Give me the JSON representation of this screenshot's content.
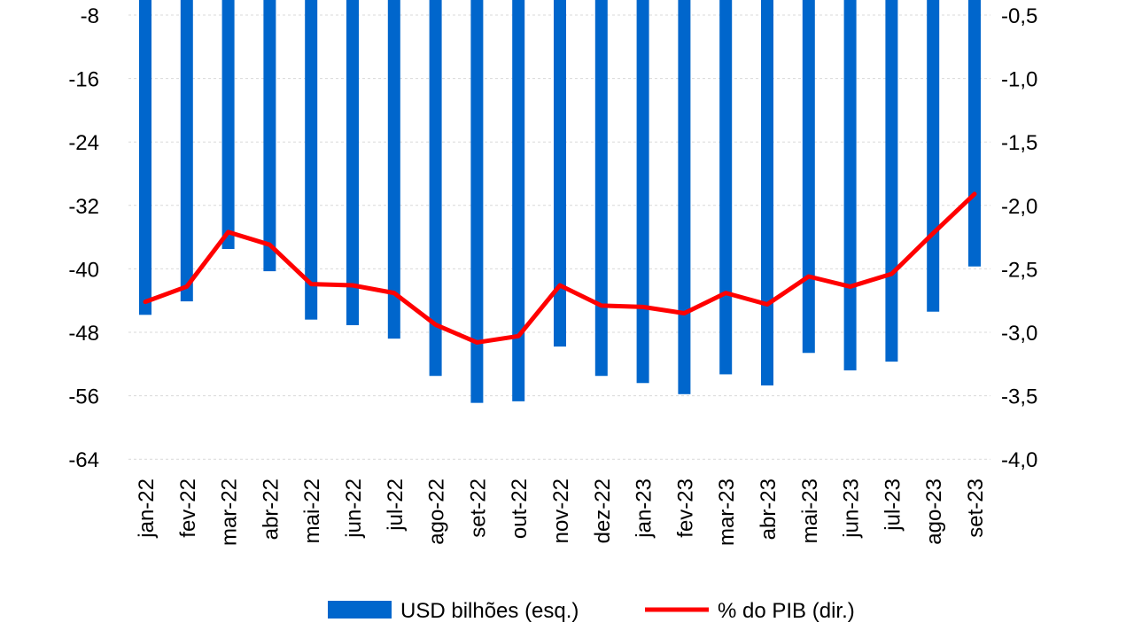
{
  "chart_data": {
    "type": "bar+line",
    "title": "",
    "categories": [
      "jan-22",
      "fev-22",
      "mar-22",
      "abr-22",
      "mai-22",
      "jun-22",
      "jul-22",
      "ago-22",
      "set-22",
      "out-22",
      "nov-22",
      "dez-22",
      "jan-23",
      "fev-23",
      "mar-23",
      "abr-23",
      "mai-23",
      "jun-23",
      "jul-23",
      "ago-23",
      "set-23"
    ],
    "series": [
      {
        "name": "USD bilhões (esq.)",
        "type": "bar",
        "axis": "left",
        "color": "#0066CC",
        "values": [
          -45.8,
          -44.1,
          -37.5,
          -40.3,
          -46.4,
          -47.1,
          -48.8,
          -53.5,
          -56.9,
          -56.7,
          -49.8,
          -53.5,
          -54.4,
          -55.8,
          -53.3,
          -54.7,
          -50.6,
          -52.8,
          -51.7,
          -45.4,
          -39.7
        ]
      },
      {
        "name": "% do PIB (dir.)",
        "type": "line",
        "axis": "right",
        "color": "#FF0000",
        "values": [
          -2.76,
          -2.64,
          -2.21,
          -2.31,
          -2.62,
          -2.63,
          -2.69,
          -2.94,
          -3.08,
          -3.03,
          -2.63,
          -2.79,
          -2.8,
          -2.85,
          -2.69,
          -2.78,
          -2.56,
          -2.64,
          -2.54,
          -2.22,
          -1.91
        ]
      }
    ],
    "left_axis": {
      "ticks": [
        "-8",
        "-16",
        "-24",
        "-32",
        "-40",
        "-48",
        "-56",
        "-64"
      ],
      "tick_values": [
        -8,
        -16,
        -24,
        -32,
        -40,
        -48,
        -56,
        -64
      ]
    },
    "right_axis": {
      "ticks": [
        "-0,5",
        "-1,0",
        "-1,5",
        "-2,0",
        "-2,5",
        "-3,0",
        "-3,5",
        "-4,0"
      ],
      "tick_values": [
        -0.5,
        -1.0,
        -1.5,
        -2.0,
        -2.5,
        -3.0,
        -3.5,
        -4.0
      ]
    },
    "grid": true,
    "legend": {
      "position": "bottom",
      "items": [
        "USD bilhões (esq.)",
        "% do PIB (dir.)"
      ]
    }
  }
}
